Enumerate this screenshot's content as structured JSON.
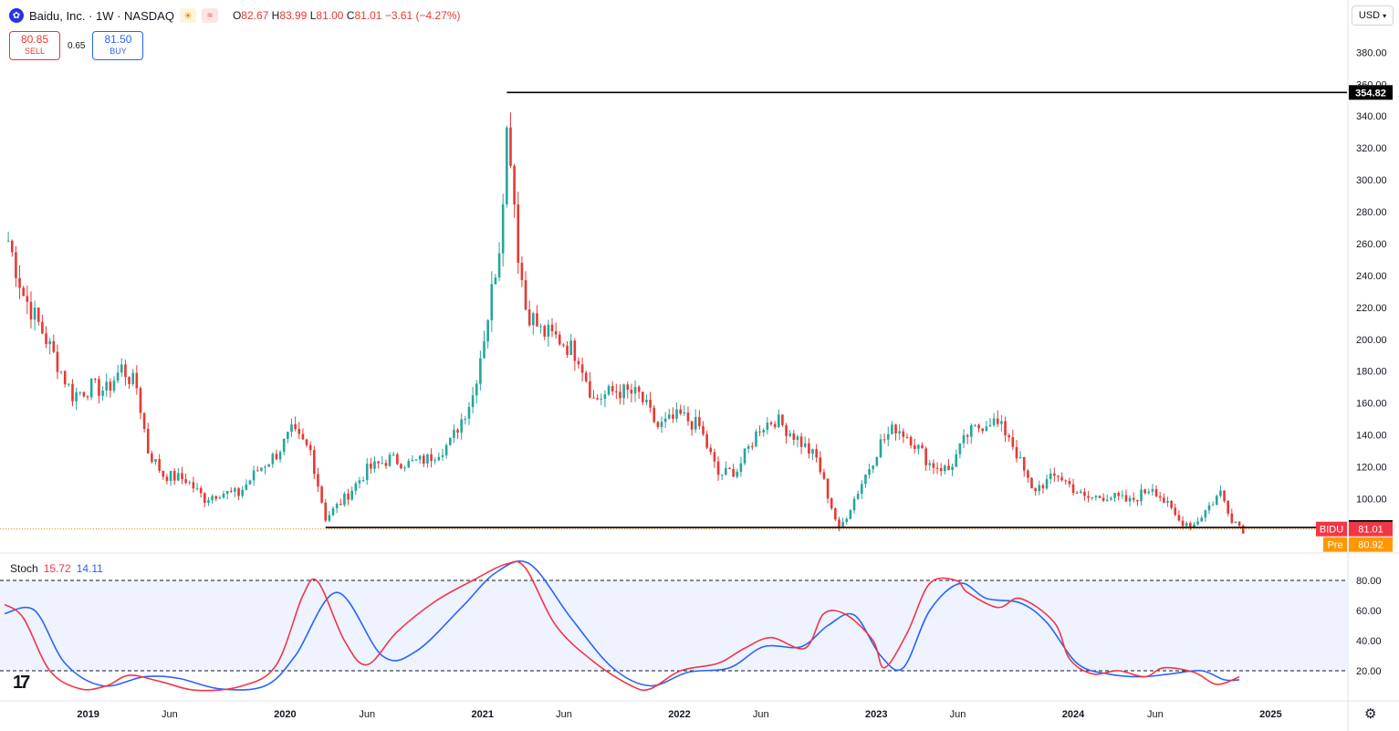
{
  "header": {
    "logo_icon": "paw-icon",
    "title": "Baidu, Inc. · 1W · NASDAQ",
    "sun_icon": "sun-icon",
    "wave_icon": "wave-icon",
    "ohlc": {
      "o_label": "O",
      "o": "82.67",
      "h_label": "H",
      "h": "83.99",
      "l_label": "L",
      "l": "81.00",
      "c_label": "C",
      "c": "81.01",
      "change": "−3.61 (−4.27%)"
    },
    "colors": {
      "down": "#e53935",
      "up": "#26a69a"
    }
  },
  "trade": {
    "sell_price": "80.85",
    "sell_label": "SELL",
    "spread": "0.65",
    "buy_price": "81.50",
    "buy_label": "BUY"
  },
  "currency": "USD",
  "price_tags": {
    "high_line": "354.82",
    "support_line": "82.00",
    "symbol_label": "BIDU",
    "symbol_price": "81.01",
    "pre_label": "Pre",
    "pre_price": "80.92"
  },
  "stoch": {
    "name": "Stoch",
    "k": "15.72",
    "d": "14.11"
  },
  "chart_data": [
    {
      "type": "candlestick",
      "title": "Baidu, Inc. · 1W · NASDAQ",
      "ylim": [
        71,
        392
      ],
      "y_ticks": [
        100,
        120,
        140,
        160,
        180,
        200,
        220,
        240,
        260,
        280,
        300,
        320,
        340,
        360,
        380
      ],
      "y_tick_labels": [
        "100.00",
        "120.00",
        "140.00",
        "160.00",
        "180.00",
        "200.00",
        "220.00",
        "240.00",
        "260.00",
        "280.00",
        "300.00",
        "320.00",
        "340.00",
        "360.00",
        "380.00"
      ],
      "x_labels": [
        "2019",
        "Jun",
        "2020",
        "Jun",
        "2021",
        "Jun",
        "2022",
        "Jun",
        "2023",
        "Jun",
        "2024",
        "Jun",
        "2025"
      ],
      "x_label_dates": [
        "2019-01-01",
        "2019-06-01",
        "2020-01-01",
        "2020-06-01",
        "2021-01-01",
        "2021-06-01",
        "2022-01-01",
        "2022-06-01",
        "2023-01-01",
        "2023-06-01",
        "2024-01-01",
        "2024-06-01",
        "2025-01-01"
      ],
      "x_range": [
        "2018-07-30",
        "2025-03-31"
      ],
      "approx_weekly_close": [
        [
          "2018-08-06",
          262
        ],
        [
          "2018-09-03",
          228
        ],
        [
          "2018-10-08",
          205
        ],
        [
          "2018-11-05",
          185
        ],
        [
          "2018-12-03",
          165
        ],
        [
          "2019-01-07",
          170
        ],
        [
          "2019-02-04",
          168
        ],
        [
          "2019-03-04",
          182
        ],
        [
          "2019-04-01",
          170
        ],
        [
          "2019-04-22",
          130
        ],
        [
          "2019-05-20",
          115
        ],
        [
          "2019-07-01",
          112
        ],
        [
          "2019-08-05",
          100
        ],
        [
          "2019-09-02",
          104
        ],
        [
          "2019-10-07",
          103
        ],
        [
          "2019-11-11",
          118
        ],
        [
          "2019-12-16",
          128
        ],
        [
          "2020-01-13",
          142
        ],
        [
          "2020-02-17",
          130
        ],
        [
          "2020-03-16",
          88
        ],
        [
          "2020-04-20",
          100
        ],
        [
          "2020-06-01",
          118
        ],
        [
          "2020-07-13",
          125
        ],
        [
          "2020-08-17",
          122
        ],
        [
          "2020-09-21",
          125
        ],
        [
          "2020-11-02",
          135
        ],
        [
          "2020-12-14",
          165
        ],
        [
          "2021-01-11",
          215
        ],
        [
          "2021-02-01",
          260
        ],
        [
          "2021-02-15",
          330
        ],
        [
          "2021-02-22",
          318
        ],
        [
          "2021-03-08",
          255
        ],
        [
          "2021-03-22",
          220
        ],
        [
          "2021-04-19",
          205
        ],
        [
          "2021-05-24",
          200
        ],
        [
          "2021-06-28",
          190
        ],
        [
          "2021-07-26",
          162
        ],
        [
          "2021-09-06",
          168
        ],
        [
          "2021-10-18",
          165
        ],
        [
          "2021-11-22",
          145
        ],
        [
          "2022-01-03",
          152
        ],
        [
          "2022-02-07",
          145
        ],
        [
          "2022-03-14",
          115
        ],
        [
          "2022-04-18",
          118
        ],
        [
          "2022-05-30",
          145
        ],
        [
          "2022-06-27",
          150
        ],
        [
          "2022-08-01",
          140
        ],
        [
          "2022-09-12",
          125
        ],
        [
          "2022-10-24",
          80
        ],
        [
          "2022-11-28",
          105
        ],
        [
          "2023-01-09",
          135
        ],
        [
          "2023-02-06",
          145
        ],
        [
          "2023-03-06",
          138
        ],
        [
          "2023-04-10",
          122
        ],
        [
          "2023-05-15",
          118
        ],
        [
          "2023-06-19",
          140
        ],
        [
          "2023-07-31",
          150
        ],
        [
          "2023-09-04",
          140
        ],
        [
          "2023-10-16",
          105
        ],
        [
          "2023-12-04",
          115
        ],
        [
          "2024-01-22",
          100
        ],
        [
          "2024-03-04",
          102
        ],
        [
          "2024-04-15",
          98
        ],
        [
          "2024-05-27",
          108
        ],
        [
          "2024-07-15",
          86
        ],
        [
          "2024-08-12",
          84
        ],
        [
          "2024-09-30",
          104
        ],
        [
          "2024-10-21",
          88
        ],
        [
          "2024-11-11",
          81
        ]
      ],
      "annotations": [
        {
          "type": "horizontal_line",
          "value": 354.82,
          "from": "2021-02-15",
          "label": "354.82"
        },
        {
          "type": "horizontal_line",
          "value": 82.0,
          "from": "2020-03-16",
          "label": "82.00"
        }
      ],
      "last_price": 81.01,
      "pre_market_price": 80.92
    },
    {
      "type": "line",
      "title": "Stoch 15.72 14.11",
      "ylim": [
        0,
        100
      ],
      "y_ticks": [
        20,
        40,
        60,
        80
      ],
      "y_tick_labels": [
        "20.00",
        "40.00",
        "60.00",
        "80.00"
      ],
      "band": [
        20,
        80
      ],
      "series": [
        {
          "name": "%K",
          "color": "#f23645",
          "points": [
            [
              "2018-07-30",
              64
            ],
            [
              "2018-09-03",
              55
            ],
            [
              "2018-10-22",
              20
            ],
            [
              "2018-12-17",
              8
            ],
            [
              "2019-02-04",
              10
            ],
            [
              "2019-03-18",
              17
            ],
            [
              "2019-05-13",
              13
            ],
            [
              "2019-07-22",
              7
            ],
            [
              "2019-10-14",
              10
            ],
            [
              "2019-12-16",
              24
            ],
            [
              "2020-02-03",
              70
            ],
            [
              "2020-03-02",
              79
            ],
            [
              "2020-04-20",
              40
            ],
            [
              "2020-06-01",
              24
            ],
            [
              "2020-07-27",
              46
            ],
            [
              "2020-10-05",
              66
            ],
            [
              "2020-12-14",
              80
            ],
            [
              "2021-02-15",
              91
            ],
            [
              "2021-03-22",
              88
            ],
            [
              "2021-05-17",
              50
            ],
            [
              "2021-07-26",
              26
            ],
            [
              "2021-10-04",
              10
            ],
            [
              "2021-11-08",
              8
            ],
            [
              "2022-01-03",
              20
            ],
            [
              "2022-03-14",
              25
            ],
            [
              "2022-05-02",
              35
            ],
            [
              "2022-06-20",
              42
            ],
            [
              "2022-08-22",
              35
            ],
            [
              "2022-09-26",
              58
            ],
            [
              "2022-11-07",
              57
            ],
            [
              "2022-12-26",
              40
            ],
            [
              "2023-01-16",
              22
            ],
            [
              "2023-02-27",
              45
            ],
            [
              "2023-04-10",
              78
            ],
            [
              "2023-05-29",
              80
            ],
            [
              "2023-06-19",
              72
            ],
            [
              "2023-08-14",
              62
            ],
            [
              "2023-09-25",
              68
            ],
            [
              "2023-11-27",
              52
            ],
            [
              "2023-12-25",
              28
            ],
            [
              "2024-02-05",
              18
            ],
            [
              "2024-03-25",
              20
            ],
            [
              "2024-05-13",
              16
            ],
            [
              "2024-06-17",
              22
            ],
            [
              "2024-08-12",
              19
            ],
            [
              "2024-09-23",
              11
            ],
            [
              "2024-11-04",
              16
            ]
          ]
        },
        {
          "name": "%D",
          "color": "#2962ff",
          "points": [
            [
              "2018-07-30",
              58
            ],
            [
              "2018-09-24",
              60
            ],
            [
              "2018-11-19",
              25
            ],
            [
              "2019-01-28",
              10
            ],
            [
              "2019-04-15",
              16
            ],
            [
              "2019-06-17",
              15
            ],
            [
              "2019-09-02",
              8
            ],
            [
              "2019-11-25",
              10
            ],
            [
              "2020-01-20",
              30
            ],
            [
              "2020-04-06",
              72
            ],
            [
              "2020-06-29",
              30
            ],
            [
              "2020-08-31",
              33
            ],
            [
              "2020-11-23",
              62
            ],
            [
              "2021-01-25",
              85
            ],
            [
              "2021-03-29",
              91
            ],
            [
              "2021-06-14",
              55
            ],
            [
              "2021-08-30",
              22
            ],
            [
              "2021-11-08",
              10
            ],
            [
              "2022-01-17",
              19
            ],
            [
              "2022-04-04",
              22
            ],
            [
              "2022-06-06",
              36
            ],
            [
              "2022-08-15",
              36
            ],
            [
              "2022-10-03",
              50
            ],
            [
              "2022-11-21",
              57
            ],
            [
              "2023-01-09",
              30
            ],
            [
              "2023-02-20",
              22
            ],
            [
              "2023-04-10",
              60
            ],
            [
              "2023-06-05",
              78
            ],
            [
              "2023-07-24",
              68
            ],
            [
              "2023-09-25",
              65
            ],
            [
              "2023-11-13",
              52
            ],
            [
              "2024-01-08",
              25
            ],
            [
              "2024-03-04",
              18
            ],
            [
              "2024-05-06",
              16
            ],
            [
              "2024-07-01",
              18
            ],
            [
              "2024-08-26",
              20
            ],
            [
              "2024-10-07",
              14
            ],
            [
              "2024-11-04",
              14
            ]
          ]
        }
      ]
    }
  ]
}
